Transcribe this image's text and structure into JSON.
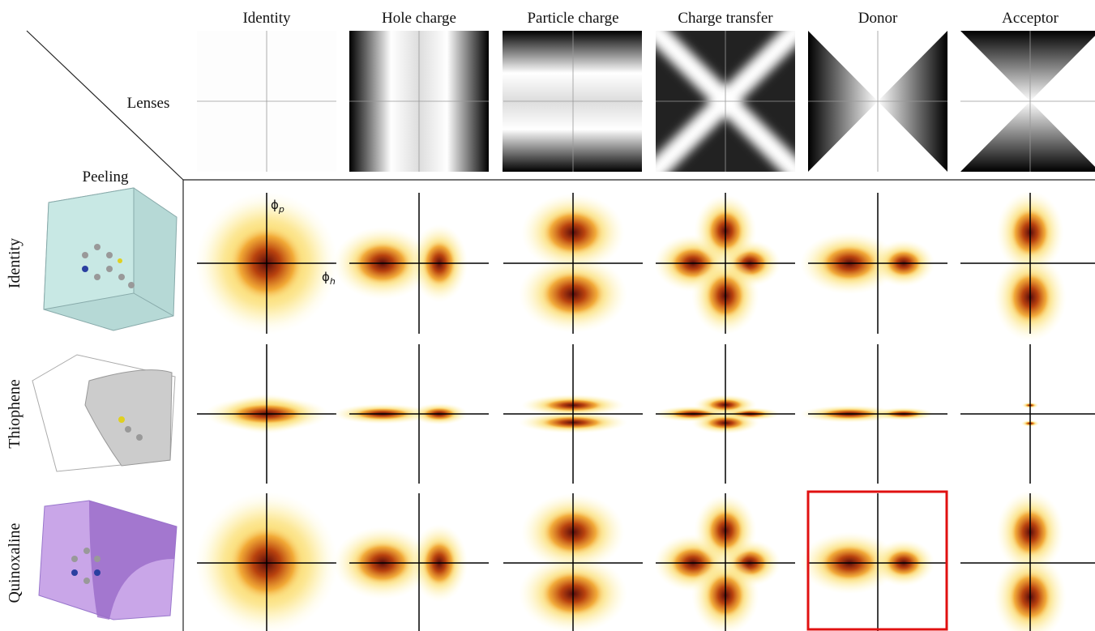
{
  "header": {
    "corner_top": "Lenses",
    "corner_left": "Peeling",
    "columns": [
      "Identity",
      "Hole charge",
      "Particle charge",
      "Charge transfer",
      "Donor",
      "Acceptor"
    ]
  },
  "rows": [
    "Identity",
    "Thiophene",
    "Quinoxaline"
  ],
  "axis_labels": {
    "vertical": {
      "symbol": "ϕ",
      "subscript": "p"
    },
    "horizontal": {
      "symbol": "ϕ",
      "subscript": "h"
    }
  }
}
